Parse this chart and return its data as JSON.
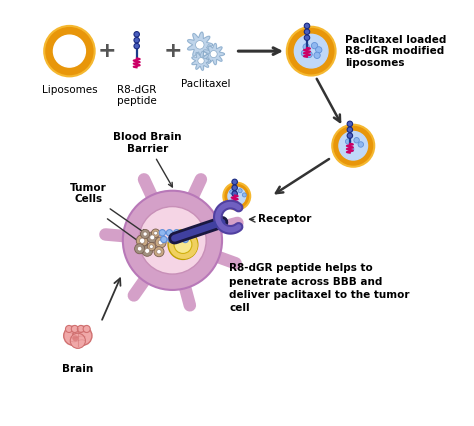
{
  "labels": {
    "liposomes": "Liposomes",
    "r8dgr": "R8-dGR\npeptide",
    "paclitaxel": "Paclitaxel",
    "loaded_liposomes": "Paclitaxel loaded\nR8-dGR modified\nliposomes",
    "blood_brain": "Blood Brain\nBarrier",
    "tumor_cells": "Tumor\nCells",
    "receptor": "Receptor",
    "brain": "Brain",
    "r8dgr_help": "R8-dGR peptide helps to\npenetrate across BBB and\ndeliver paclitaxel to the tumor\ncell"
  },
  "colors": {
    "liposome_outer": "#E8960A",
    "liposome_mid": "#F5B830",
    "peptide_line": "#1A3A8A",
    "peptide_bead": "#4A5FBF",
    "peptide_coil": "#CC0066",
    "paclitaxel_gear": "#B8D0E8",
    "bbb_cell_outer": "#D4A0C8",
    "bbb_cell_inner": "#F5D5E5",
    "nucleus_outer": "#F0D060",
    "nucleus_inner": "#F8E890",
    "tumor_tan": "#C8A882",
    "tumor_gray": "#A09080",
    "arrow_color": "#333333",
    "receptor_color": "#5040A0",
    "brain_color": "#F0A8A8",
    "brain_dark": "#D07070",
    "background": "#FFFFFF",
    "text_color": "#000000",
    "blue_bead": "#6090D8",
    "blue_bead_light": "#90B8F0",
    "needle_dark": "#1A1840",
    "needle_light": "#4040A0",
    "loaded_fill": "#C0D8F8"
  },
  "layout": {
    "xlim": [
      0,
      10
    ],
    "ylim": [
      0,
      10
    ],
    "figw": 4.74,
    "figh": 4.26,
    "dpi": 100
  }
}
